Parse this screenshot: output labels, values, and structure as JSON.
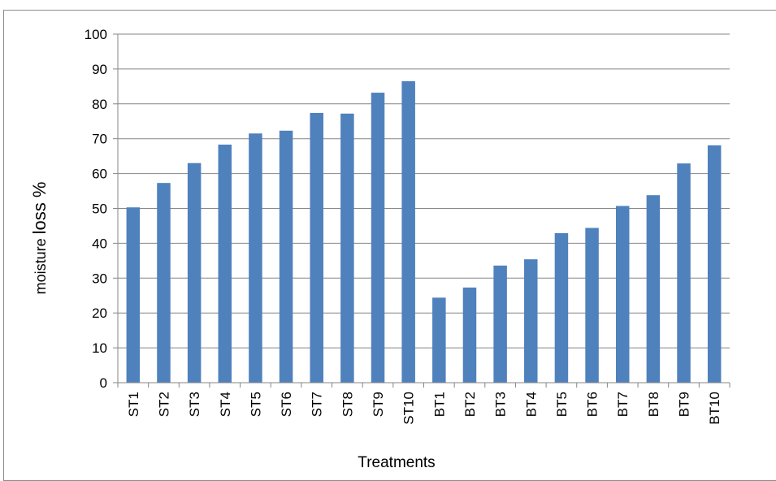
{
  "chart_data": {
    "type": "bar",
    "categories": [
      "ST1",
      "ST2",
      "ST3",
      "ST4",
      "ST5",
      "ST6",
      "ST7",
      "ST8",
      "ST9",
      "ST10",
      "BT1",
      "BT2",
      "BT3",
      "BT4",
      "BT5",
      "BT6",
      "BT7",
      "BT8",
      "BT9",
      "BT10"
    ],
    "series": [
      {
        "values": [
          50.3,
          57.3,
          63,
          68.3,
          71.5,
          72.3,
          77.4,
          77.2,
          83.2,
          86.5,
          24.4,
          27.3,
          33.6,
          35.4,
          42.9,
          44.4,
          50.7,
          53.8,
          62.9,
          68.1
        ]
      }
    ],
    "xlabel": "Treatments",
    "ylabel_parts": [
      "moisture ",
      "loss %"
    ],
    "ylim": [
      0,
      100
    ],
    "yticks": [
      "0",
      "10",
      "20",
      "30",
      "40",
      "50",
      "60",
      "70",
      "80",
      "90",
      "100"
    ],
    "grid": true,
    "colors": {
      "bar": "#4F81BD",
      "grid": "#868686",
      "axis": "#868686"
    }
  }
}
